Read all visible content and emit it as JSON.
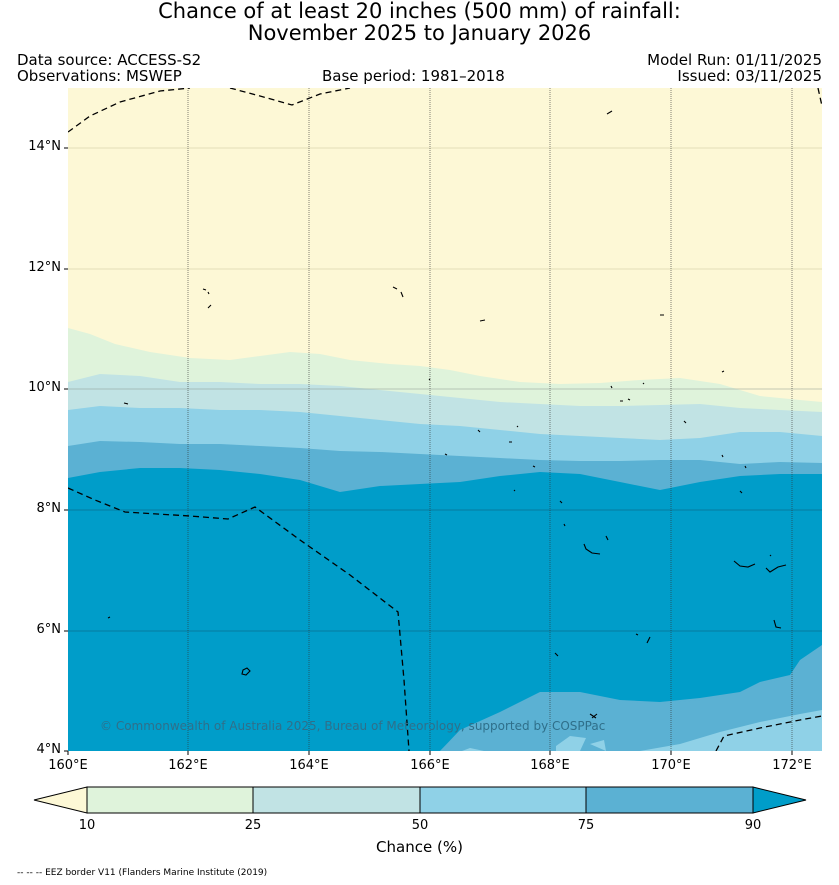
{
  "title": {
    "line1": "Chance of at least 20 inches (500  mm) of rainfall:",
    "line2": "November 2025 to January 2026"
  },
  "header": {
    "data_source": "Data source: ACCESS-S2",
    "observations": "Observations: MSWEP",
    "base_period": "Base period: 1981–2018",
    "model_run": "Model Run: 01/11/2025",
    "issued": "Issued: 03/11/2025"
  },
  "map": {
    "lat_labels": [
      "14°N",
      "12°N",
      "10°N",
      "8°N",
      "6°N",
      "4°N"
    ],
    "lon_labels": [
      "160°E",
      "162°E",
      "164°E",
      "166°E",
      "168°E",
      "170°E",
      "172°E"
    ],
    "copyright": "© Commonwealth of Australia 2025, Bureau of Meteorology, supported by COSPPac",
    "colors": {
      "lt10": "#fdf8d6",
      "c10_25": "#dff3db",
      "c25_50": "#c1e3e4",
      "c50_75": "#8fd1e7",
      "c75_90": "#5bb1d3",
      "gt90": "#009dc9"
    }
  },
  "colorbar": {
    "ticks": [
      "10",
      "25",
      "50",
      "75",
      "90"
    ],
    "label": "Chance (%)"
  },
  "footnote": "-- -- -- EEZ border V11 (Flanders Marine Institute (2019)"
}
